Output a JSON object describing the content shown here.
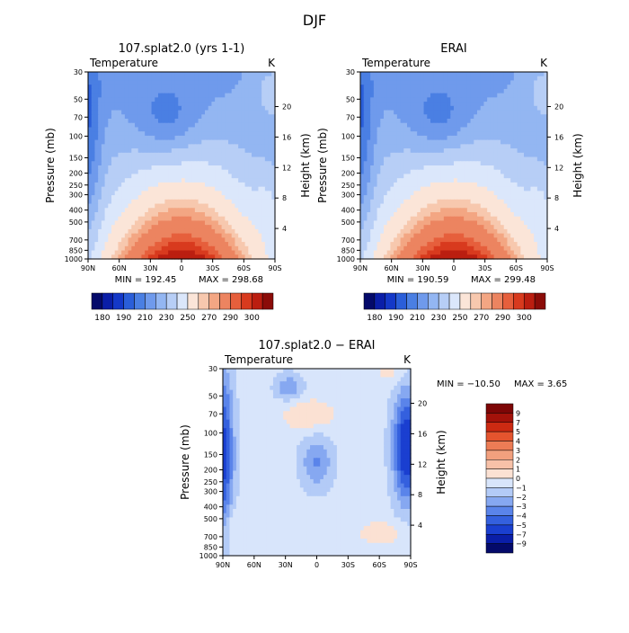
{
  "figure_title": "DJF",
  "colors": {
    "seq": [
      "#040a6a",
      "#0a1ea8",
      "#1438c8",
      "#2a5ed9",
      "#4a7fe3",
      "#6f9aec",
      "#93b6f2",
      "#b7cef6",
      "#dbe7fb",
      "#fbe5d8",
      "#f7c8ae",
      "#f3a683",
      "#ec8460",
      "#e65f3c",
      "#d83a1e",
      "#bb1e10",
      "#8b0c08"
    ],
    "div": [
      "#040a6a",
      "#0a1ea8",
      "#1a3fd0",
      "#3460de",
      "#5a84ea",
      "#86a8f1",
      "#b3cbf7",
      "#d8e5fb",
      "#fbe1d3",
      "#f7c1a8",
      "#f2a07e",
      "#ec7c55",
      "#e4542e",
      "#cc2a12",
      "#a3120a",
      "#7d0606"
    ]
  },
  "chart_data": [
    {
      "type": "heatmap",
      "title": "107.splat2.0 (yrs 1-1)",
      "variable_label": "Temperature",
      "unit": "K",
      "xlabel": "",
      "ylabel": "Pressure (mb)",
      "y2label": "Height (km)",
      "x_ticks": [
        "90N",
        "60N",
        "30N",
        "0",
        "30S",
        "60S",
        "90S"
      ],
      "y_ticks": [
        30,
        50,
        70,
        100,
        150,
        200,
        250,
        300,
        400,
        500,
        700,
        850,
        1000
      ],
      "y2_ticks": [
        4,
        8,
        12,
        16,
        20
      ],
      "min_text": "MIN = 192.45",
      "max_text": "MAX = 298.68",
      "colorbar_labels": [
        "180",
        "190",
        "210",
        "230",
        "250",
        "270",
        "290",
        "300"
      ],
      "cb_levels": [
        180,
        185,
        190,
        200,
        210,
        220,
        230,
        240,
        250,
        260,
        265,
        270,
        280,
        285,
        290,
        295,
        300
      ]
    },
    {
      "type": "heatmap",
      "title": "ERAI",
      "variable_label": "Temperature",
      "unit": "K",
      "xlabel": "",
      "ylabel": "Pressure (mb)",
      "y2label": "Height (km)",
      "x_ticks": [
        "90N",
        "60N",
        "30N",
        "0",
        "30S",
        "60S",
        "90S"
      ],
      "y_ticks": [
        30,
        50,
        70,
        100,
        150,
        200,
        250,
        300,
        400,
        500,
        700,
        850,
        1000
      ],
      "y2_ticks": [
        4,
        8,
        12,
        16,
        20
      ],
      "min_text": "MIN = 190.59",
      "max_text": "MAX = 299.48",
      "colorbar_labels": [
        "180",
        "190",
        "210",
        "230",
        "250",
        "270",
        "290",
        "300"
      ],
      "cb_levels": [
        180,
        185,
        190,
        200,
        210,
        220,
        230,
        240,
        250,
        260,
        265,
        270,
        280,
        285,
        290,
        295,
        300
      ]
    },
    {
      "type": "heatmap",
      "title": "107.splat2.0 − ERAI",
      "variable_label": "Temperature",
      "unit": "K",
      "xlabel": "",
      "ylabel": "Pressure (mb)",
      "y2label": "Height (km)",
      "x_ticks": [
        "90N",
        "60N",
        "30N",
        "0",
        "30S",
        "60S",
        "90S"
      ],
      "y_ticks": [
        30,
        50,
        70,
        100,
        150,
        200,
        250,
        300,
        400,
        500,
        700,
        850,
        1000
      ],
      "y2_ticks": [
        4,
        8,
        12,
        16,
        20
      ],
      "min_text": "MIN = −10.50",
      "max_text": "MAX =    3.65",
      "colorbar_labels": [
        "9",
        "7",
        "5",
        "4",
        "3",
        "2",
        "1",
        "0",
        "−1",
        "−2",
        "−3",
        "−4",
        "−5",
        "−7",
        "−9"
      ]
    }
  ]
}
